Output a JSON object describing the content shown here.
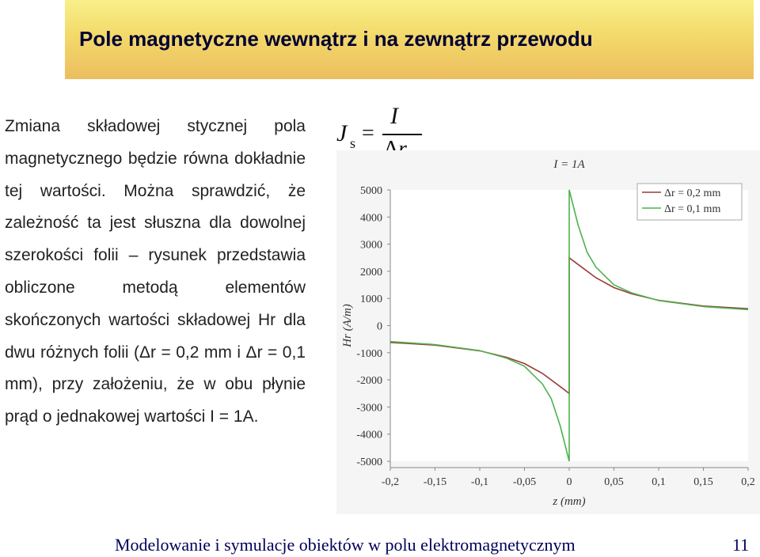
{
  "slide": {
    "title": "Pole magnetyczne wewnątrz i na zewnątrz przewodu",
    "body": "Zmiana składowej stycznej pola magnetycznego będzie równa dokładnie tej wartości. Można sprawdzić, że zależność ta jest słuszna dla dowolnej szerokości folii – rysunek przedstawia obliczone metodą elementów skończonych wartości składowej Hr dla dwu różnych folii (Δr = 0,2 mm i Δr = 0,1 mm), przy założeniu, że w obu płynie prąd o jednakowej wartości I = 1A.",
    "footer": "Modelowanie i symulacje obiektów w polu elektromagnetycznym",
    "page_number": "11"
  },
  "formula": {
    "lhs": "J",
    "lhs_sub": "s",
    "eq": "=",
    "numerator": "I",
    "denominator_delta": "Δ",
    "denominator_var": "r"
  },
  "colors": {
    "title_bar": "#f3d96a",
    "footer_text": "#00005a",
    "series_02": "#9b3a3a",
    "series_01": "#4cb34c"
  },
  "chart_data": {
    "type": "line",
    "title": "I = 1A",
    "xlabel": "z (mm)",
    "ylabel": "Hr (A/m)",
    "xlim": [
      -0.2,
      0.2
    ],
    "ylim": [
      -5000,
      5000
    ],
    "x_ticks": [
      "-0,2",
      "-0,15",
      "-0,1",
      "-0,05",
      "0",
      "0,05",
      "0,1",
      "0,15",
      "0,2"
    ],
    "y_ticks": [
      "5000",
      "4000",
      "3000",
      "2000",
      "1000",
      "0",
      "-1000",
      "-2000",
      "-3000",
      "-4000",
      "-5000"
    ],
    "grid": false,
    "legend_position": "top-right",
    "series": [
      {
        "name": "Δr = 0,2 mm",
        "x": [
          -0.2,
          -0.15,
          -0.1,
          -0.07,
          -0.05,
          -0.03,
          -0.01,
          0,
          0,
          0.01,
          0.03,
          0.05,
          0.07,
          0.1,
          0.15,
          0.2
        ],
        "y": [
          -620,
          -720,
          -930,
          -1170,
          -1400,
          -1760,
          -2250,
          -2500,
          2500,
          2250,
          1760,
          1400,
          1170,
          930,
          720,
          620
        ]
      },
      {
        "name": "Δr = 0,1 mm",
        "x": [
          -0.2,
          -0.15,
          -0.1,
          -0.07,
          -0.05,
          -0.03,
          -0.02,
          -0.01,
          0,
          0,
          0.01,
          0.02,
          0.03,
          0.05,
          0.07,
          0.1,
          0.15,
          0.2
        ],
        "y": [
          -590,
          -700,
          -920,
          -1200,
          -1500,
          -2150,
          -2700,
          -3700,
          -5000,
          5000,
          3700,
          2700,
          2150,
          1500,
          1200,
          920,
          700,
          590
        ]
      }
    ]
  }
}
